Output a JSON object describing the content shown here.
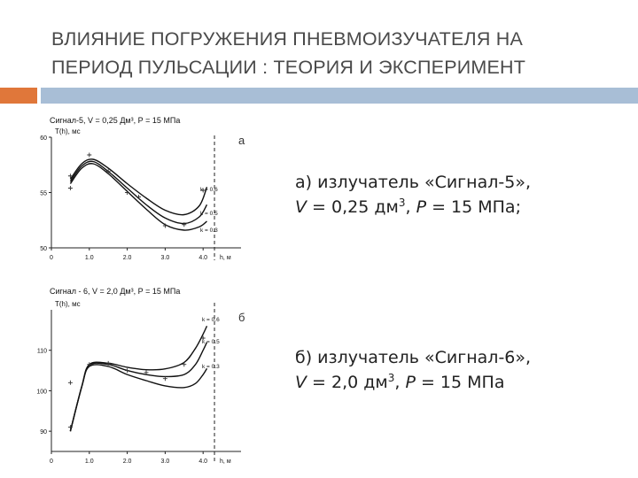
{
  "title": {
    "line1": "ВЛИЯНИЕ ПОГРУЖЕНИЯ ПНЕВМОИЗУЧАТЕЛЯ НА",
    "line2": "ПЕРИОД ПУЛЬСАЦИИ : ТЕОРИЯ И ЭКСПЕРИМЕНТ"
  },
  "captions": {
    "a": {
      "prefix": "а) излучатель «Сигнал-5»,",
      "v_var": "V",
      "v_text": " = 0,25 дм",
      "v_exp": "3",
      "p_sep": ", ",
      "p_var": "P",
      "p_text": " = 15 МПа;"
    },
    "b": {
      "prefix": "б) излучатель «Сигнал-6»,",
      "v_var": "V",
      "v_text": " = 2,0 дм",
      "v_exp": "3",
      "p_sep": ", ",
      "p_var": "P",
      "p_text": " = 15 МПа"
    }
  },
  "colors": {
    "accent_orange": "#e0773a",
    "accent_blue": "#a8bed6"
  },
  "chart_data": [
    {
      "type": "line",
      "title": "Сигнал-5,  V = 0,25 Дм³,  Р = 15 МПа",
      "panel_letter": "а",
      "ylabel": "T(h), мс",
      "xlabel": "h, м",
      "xlim": [
        0,
        5
      ],
      "ylim": [
        50,
        60
      ],
      "x_ticks": [
        "0",
        "1.0",
        "2.0",
        "3.0",
        "4.0"
      ],
      "y_ticks": [
        {
          "v": 50,
          "label": "50"
        },
        {
          "v": 55,
          "label": "55"
        },
        {
          "v": 60,
          "label": "60"
        }
      ],
      "vline_x": 4.3,
      "x": [
        0.5,
        0.8,
        1.1,
        1.5,
        2.0,
        2.5,
        3.0,
        3.5,
        3.9,
        4.1
      ],
      "series": [
        {
          "name": "k = 0.6",
          "values": [
            56.2,
            57.6,
            58.0,
            57.2,
            55.8,
            54.5,
            53.4,
            53.0,
            53.8,
            55.5
          ]
        },
        {
          "name": "k = 0.5",
          "values": [
            56.0,
            57.4,
            57.8,
            56.9,
            55.4,
            53.9,
            52.7,
            52.2,
            52.8,
            53.9
          ]
        },
        {
          "name": "k = 0.3",
          "values": [
            55.8,
            57.2,
            57.6,
            56.7,
            55.1,
            53.5,
            52.1,
            51.6,
            51.9,
            52.4
          ]
        }
      ],
      "points": [
        {
          "x": 0.5,
          "y": 56.5
        },
        {
          "x": 0.5,
          "y": 55.4
        },
        {
          "x": 1.0,
          "y": 58.4
        },
        {
          "x": 1.5,
          "y": 56.9
        },
        {
          "x": 2.0,
          "y": 55.0
        },
        {
          "x": 2.3,
          "y": 54.6
        },
        {
          "x": 3.0,
          "y": 52.0
        },
        {
          "x": 3.5,
          "y": 52.1
        },
        {
          "x": 4.0,
          "y": 55.2
        }
      ]
    },
    {
      "type": "line",
      "title": "Сигнал - 6,  V = 2,0 Дм³,  Р = 15 МПа",
      "panel_letter": "б",
      "ylabel": "T(h), мс",
      "xlabel": "h, м",
      "xlim": [
        0,
        5
      ],
      "ylim": [
        85,
        120
      ],
      "x_ticks": [
        "0",
        "1.0",
        "2.0",
        "3.0",
        "4.0"
      ],
      "y_ticks": [
        {
          "v": 90,
          "label": "90"
        },
        {
          "v": 100,
          "label": "100"
        },
        {
          "v": 110,
          "label": "110"
        }
      ],
      "vline_x": 4.3,
      "x": [
        0.5,
        0.8,
        1.0,
        1.5,
        2.0,
        2.5,
        3.0,
        3.5,
        3.8,
        4.0,
        4.1
      ],
      "series": [
        {
          "name": "k = 0.6",
          "values": [
            90,
            101,
            106.5,
            106.8,
            105.8,
            105.2,
            105.4,
            107.0,
            110.5,
            114.0,
            116.0
          ]
        },
        {
          "name": "k = 0.5",
          "values": [
            90,
            101,
            106.3,
            106.5,
            105.0,
            104.0,
            103.5,
            104.0,
            106.5,
            110.0,
            112.0
          ]
        },
        {
          "name": "k = 0.3",
          "values": [
            90,
            101,
            106.0,
            106.0,
            104.0,
            102.5,
            101.2,
            100.8,
            101.8,
            104.0,
            105.5
          ]
        }
      ],
      "points": [
        {
          "x": 0.5,
          "y": 102.0
        },
        {
          "x": 0.5,
          "y": 91.0
        },
        {
          "x": 1.0,
          "y": 106.5
        },
        {
          "x": 1.5,
          "y": 106.8
        },
        {
          "x": 2.0,
          "y": 105.0
        },
        {
          "x": 2.5,
          "y": 104.5
        },
        {
          "x": 3.0,
          "y": 103.0
        },
        {
          "x": 3.5,
          "y": 106.5
        },
        {
          "x": 4.0,
          "y": 113.0
        }
      ]
    }
  ]
}
